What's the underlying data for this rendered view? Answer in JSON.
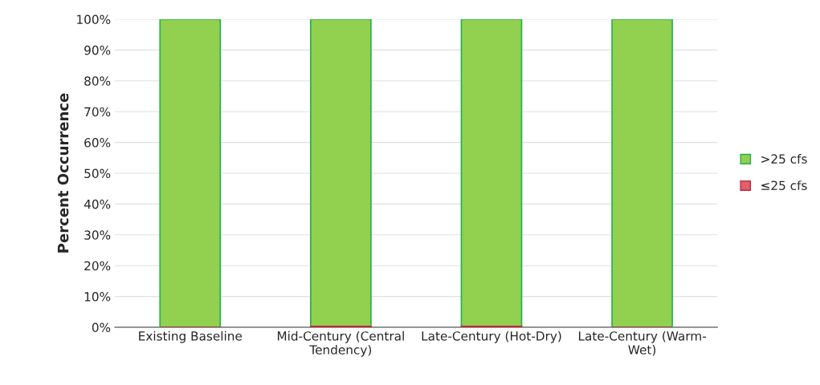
{
  "chart_data": {
    "type": "bar",
    "stacked": true,
    "ylabel": "Percent Occurrence",
    "categories": [
      "Existing Baseline",
      "Mid-Century (Central Tendency)",
      "Late-Century (Hot-Dry)",
      "Late-Century (Warm-Wet)"
    ],
    "series": [
      {
        "name": "≤25 cfs",
        "color": "#e0606e",
        "values": [
          0,
          0.3,
          0.3,
          0
        ]
      },
      {
        "name": ">25 cfs",
        "color": "#92d050",
        "values": [
          100,
          99.7,
          99.7,
          100
        ]
      }
    ],
    "ylim": [
      0,
      100
    ],
    "yticks": [
      {
        "value": 0,
        "label": "0%"
      },
      {
        "value": 10,
        "label": "10%"
      },
      {
        "value": 20,
        "label": "20%"
      },
      {
        "value": 30,
        "label": "30%"
      },
      {
        "value": 40,
        "label": "40%"
      },
      {
        "value": 50,
        "label": "50%"
      },
      {
        "value": 60,
        "label": "60%"
      },
      {
        "value": 70,
        "label": "70%"
      },
      {
        "value": 80,
        "label": "80%"
      },
      {
        "value": 90,
        "label": "90%"
      },
      {
        "value": 100,
        "label": "100%"
      }
    ],
    "grid": "y",
    "legend": "right"
  }
}
